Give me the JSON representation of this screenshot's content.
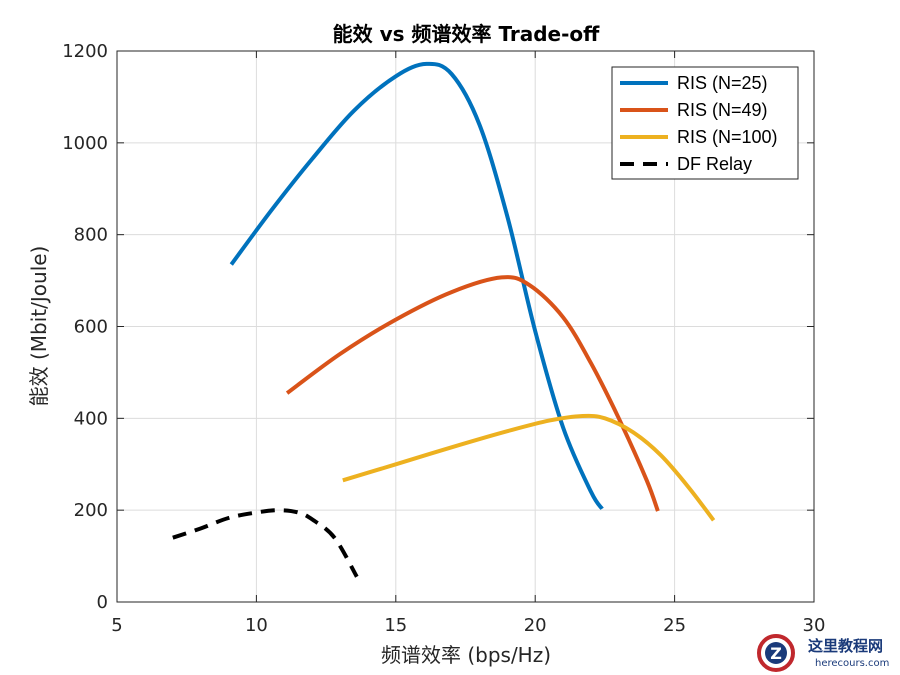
{
  "chart_data": {
    "type": "line",
    "title": "能效 vs 频谱效率 Trade-off",
    "xlabel": "频谱效率 (bps/Hz)",
    "ylabel": "能效 (Mbit/Joule)",
    "xlim": [
      5,
      30
    ],
    "ylim": [
      0,
      1200
    ],
    "xticks": [
      5,
      10,
      15,
      20,
      25,
      30
    ],
    "yticks": [
      0,
      200,
      400,
      600,
      800,
      1000,
      1200
    ],
    "grid": true,
    "legend_position": "top-right",
    "series": [
      {
        "name": "RIS (N=25)",
        "color": "#0072BD",
        "style": "solid",
        "points": [
          [
            9.1,
            735
          ],
          [
            10.5,
            850
          ],
          [
            12,
            965
          ],
          [
            13.5,
            1070
          ],
          [
            15,
            1145
          ],
          [
            16.1,
            1172
          ],
          [
            17,
            1150
          ],
          [
            18,
            1040
          ],
          [
            19,
            840
          ],
          [
            20,
            590
          ],
          [
            21,
            380
          ],
          [
            22,
            240
          ],
          [
            22.4,
            203
          ]
        ]
      },
      {
        "name": "RIS (N=49)",
        "color": "#D95319",
        "style": "solid",
        "points": [
          [
            11.1,
            455
          ],
          [
            13,
            540
          ],
          [
            15,
            615
          ],
          [
            17,
            675
          ],
          [
            18.8,
            707
          ],
          [
            19.8,
            690
          ],
          [
            21,
            620
          ],
          [
            22,
            520
          ],
          [
            23,
            400
          ],
          [
            24,
            265
          ],
          [
            24.4,
            198
          ]
        ]
      },
      {
        "name": "RIS (N=100)",
        "color": "#EDB120",
        "style": "solid",
        "points": [
          [
            13.1,
            265
          ],
          [
            15,
            300
          ],
          [
            17,
            337
          ],
          [
            19,
            372
          ],
          [
            20.5,
            395
          ],
          [
            21.7,
            405
          ],
          [
            22.5,
            400
          ],
          [
            23.5,
            370
          ],
          [
            24.5,
            320
          ],
          [
            25.5,
            250
          ],
          [
            26.4,
            178
          ]
        ]
      },
      {
        "name": "DF Relay",
        "color": "#000000",
        "style": "dashed",
        "points": [
          [
            7,
            140
          ],
          [
            8,
            160
          ],
          [
            9,
            183
          ],
          [
            10,
            195
          ],
          [
            10.8,
            200
          ],
          [
            11.5,
            195
          ],
          [
            12,
            180
          ],
          [
            12.8,
            140
          ],
          [
            13.6,
            55
          ]
        ]
      }
    ]
  },
  "watermark": {
    "text": "这里教程网",
    "subtext": "herecours.com"
  }
}
